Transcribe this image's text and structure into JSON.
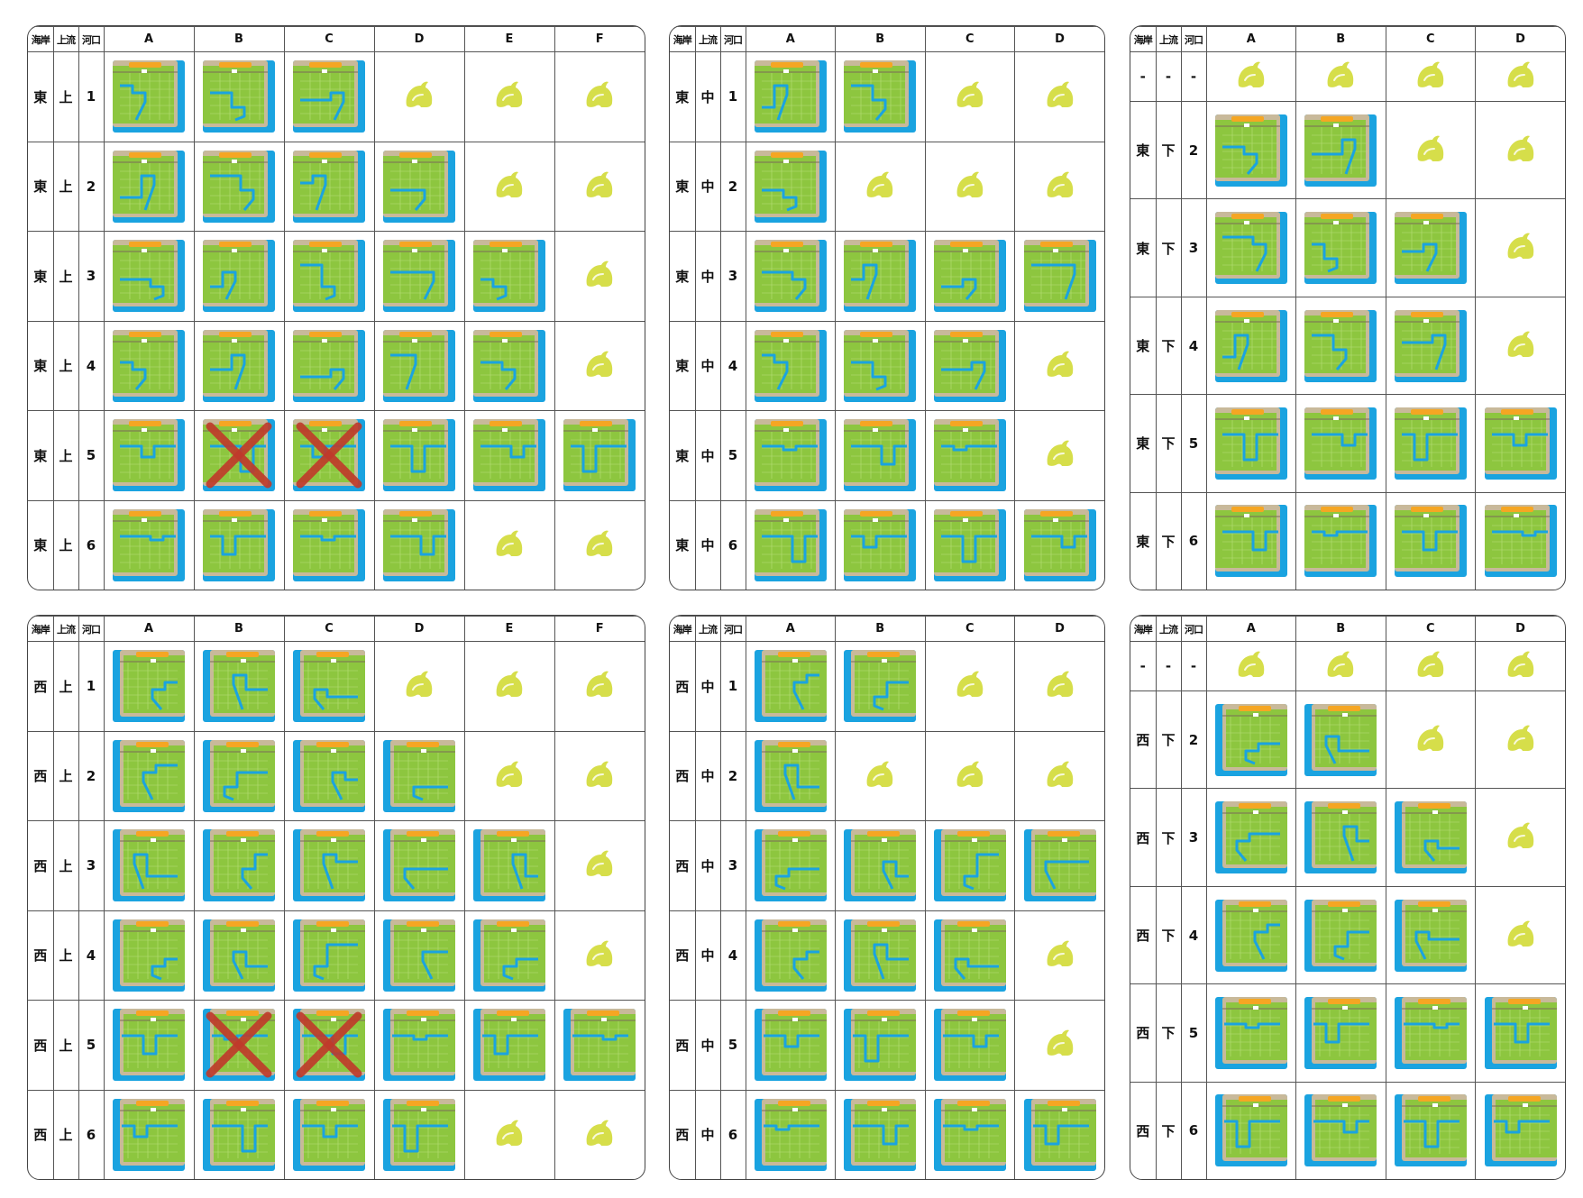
{
  "header_labels": {
    "coast": "海岸",
    "upstream": "上流",
    "mouth": "河口"
  },
  "colors": {
    "grass": "#8dc63f",
    "sand": "#c8b99a",
    "sea": "#1aa3e0",
    "river": "#1aa3e0",
    "plaza": "#f5a623",
    "leaf": "#d6de4a",
    "cross": "#c0392b"
  },
  "panels": [
    {
      "columns": [
        "A",
        "B",
        "C",
        "D",
        "E",
        "F"
      ],
      "coast_side": "east",
      "rows": [
        {
          "coast": "東",
          "upstream": "上",
          "mouth": "1",
          "cells": [
            "map",
            "map",
            "map",
            "leaf",
            "leaf",
            "leaf"
          ]
        },
        {
          "coast": "東",
          "upstream": "上",
          "mouth": "2",
          "cells": [
            "map",
            "map",
            "map",
            "map",
            "leaf",
            "leaf"
          ]
        },
        {
          "coast": "東",
          "upstream": "上",
          "mouth": "3",
          "cells": [
            "map",
            "map",
            "map",
            "map",
            "map",
            "leaf"
          ]
        },
        {
          "coast": "東",
          "upstream": "上",
          "mouth": "4",
          "cells": [
            "map",
            "map",
            "map",
            "map",
            "map",
            "leaf"
          ]
        },
        {
          "coast": "東",
          "upstream": "上",
          "mouth": "5",
          "cells": [
            "map",
            "crossed",
            "crossed",
            "map",
            "map",
            "map"
          ]
        },
        {
          "coast": "東",
          "upstream": "上",
          "mouth": "6",
          "cells": [
            "map",
            "map",
            "map",
            "map",
            "leaf",
            "leaf"
          ]
        }
      ]
    },
    {
      "columns": [
        "A",
        "B",
        "C",
        "D"
      ],
      "coast_side": "east",
      "rows": [
        {
          "coast": "東",
          "upstream": "中",
          "mouth": "1",
          "cells": [
            "map",
            "map",
            "leaf",
            "leaf"
          ]
        },
        {
          "coast": "東",
          "upstream": "中",
          "mouth": "2",
          "cells": [
            "map",
            "leaf",
            "leaf",
            "leaf"
          ]
        },
        {
          "coast": "東",
          "upstream": "中",
          "mouth": "3",
          "cells": [
            "map",
            "map",
            "map",
            "map"
          ]
        },
        {
          "coast": "東",
          "upstream": "中",
          "mouth": "4",
          "cells": [
            "map",
            "map",
            "map",
            "leaf"
          ]
        },
        {
          "coast": "東",
          "upstream": "中",
          "mouth": "5",
          "cells": [
            "map",
            "map",
            "map",
            "leaf"
          ]
        },
        {
          "coast": "東",
          "upstream": "中",
          "mouth": "6",
          "cells": [
            "map",
            "map",
            "map",
            "map"
          ]
        }
      ]
    },
    {
      "columns": [
        "A",
        "B",
        "C",
        "D"
      ],
      "coast_side": "east",
      "rows": [
        {
          "coast": "-",
          "upstream": "-",
          "mouth": "-",
          "cells": [
            "leaf",
            "leaf",
            "leaf",
            "leaf"
          ]
        },
        {
          "coast": "東",
          "upstream": "下",
          "mouth": "2",
          "cells": [
            "map",
            "map",
            "leaf",
            "leaf"
          ]
        },
        {
          "coast": "東",
          "upstream": "下",
          "mouth": "3",
          "cells": [
            "map",
            "map",
            "map",
            "leaf"
          ]
        },
        {
          "coast": "東",
          "upstream": "下",
          "mouth": "4",
          "cells": [
            "map",
            "map",
            "map",
            "leaf"
          ]
        },
        {
          "coast": "東",
          "upstream": "下",
          "mouth": "5",
          "cells": [
            "map",
            "map",
            "map",
            "map"
          ]
        },
        {
          "coast": "東",
          "upstream": "下",
          "mouth": "6",
          "cells": [
            "map",
            "map",
            "map",
            "map"
          ]
        }
      ]
    },
    {
      "columns": [
        "A",
        "B",
        "C",
        "D",
        "E",
        "F"
      ],
      "coast_side": "west",
      "rows": [
        {
          "coast": "西",
          "upstream": "上",
          "mouth": "1",
          "cells": [
            "map",
            "map",
            "map",
            "leaf",
            "leaf",
            "leaf"
          ]
        },
        {
          "coast": "西",
          "upstream": "上",
          "mouth": "2",
          "cells": [
            "map",
            "map",
            "map",
            "map",
            "leaf",
            "leaf"
          ]
        },
        {
          "coast": "西",
          "upstream": "上",
          "mouth": "3",
          "cells": [
            "map",
            "map",
            "map",
            "map",
            "map",
            "leaf"
          ]
        },
        {
          "coast": "西",
          "upstream": "上",
          "mouth": "4",
          "cells": [
            "map",
            "map",
            "map",
            "map",
            "map",
            "leaf"
          ]
        },
        {
          "coast": "西",
          "upstream": "上",
          "mouth": "5",
          "cells": [
            "map",
            "crossed",
            "crossed",
            "map",
            "map",
            "map"
          ]
        },
        {
          "coast": "西",
          "upstream": "上",
          "mouth": "6",
          "cells": [
            "map",
            "map",
            "map",
            "map",
            "leaf",
            "leaf"
          ]
        }
      ]
    },
    {
      "columns": [
        "A",
        "B",
        "C",
        "D"
      ],
      "coast_side": "west",
      "rows": [
        {
          "coast": "西",
          "upstream": "中",
          "mouth": "1",
          "cells": [
            "map",
            "map",
            "leaf",
            "leaf"
          ]
        },
        {
          "coast": "西",
          "upstream": "中",
          "mouth": "2",
          "cells": [
            "map",
            "leaf",
            "leaf",
            "leaf"
          ]
        },
        {
          "coast": "西",
          "upstream": "中",
          "mouth": "3",
          "cells": [
            "map",
            "map",
            "map",
            "map"
          ]
        },
        {
          "coast": "西",
          "upstream": "中",
          "mouth": "4",
          "cells": [
            "map",
            "map",
            "map",
            "leaf"
          ]
        },
        {
          "coast": "西",
          "upstream": "中",
          "mouth": "5",
          "cells": [
            "map",
            "map",
            "map",
            "leaf"
          ]
        },
        {
          "coast": "西",
          "upstream": "中",
          "mouth": "6",
          "cells": [
            "map",
            "map",
            "map",
            "map"
          ]
        }
      ]
    },
    {
      "columns": [
        "A",
        "B",
        "C",
        "D"
      ],
      "coast_side": "west",
      "rows": [
        {
          "coast": "-",
          "upstream": "-",
          "mouth": "-",
          "cells": [
            "leaf",
            "leaf",
            "leaf",
            "leaf"
          ]
        },
        {
          "coast": "西",
          "upstream": "下",
          "mouth": "2",
          "cells": [
            "map",
            "map",
            "leaf",
            "leaf"
          ]
        },
        {
          "coast": "西",
          "upstream": "下",
          "mouth": "3",
          "cells": [
            "map",
            "map",
            "map",
            "leaf"
          ]
        },
        {
          "coast": "西",
          "upstream": "下",
          "mouth": "4",
          "cells": [
            "map",
            "map",
            "map",
            "leaf"
          ]
        },
        {
          "coast": "西",
          "upstream": "下",
          "mouth": "5",
          "cells": [
            "map",
            "map",
            "map",
            "map"
          ]
        },
        {
          "coast": "西",
          "upstream": "下",
          "mouth": "6",
          "cells": [
            "map",
            "map",
            "map",
            "map"
          ]
        }
      ]
    }
  ]
}
